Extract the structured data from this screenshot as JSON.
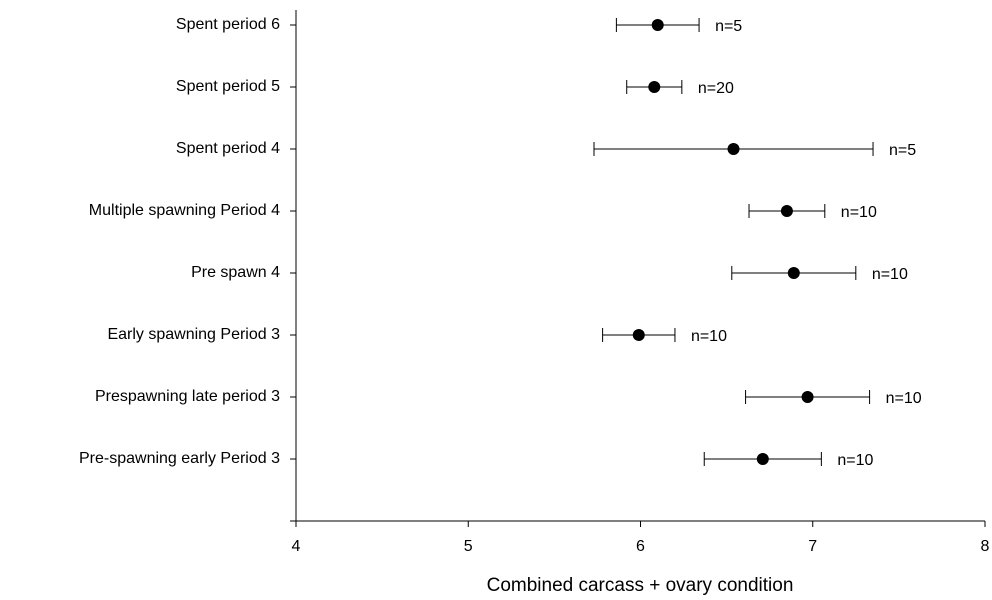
{
  "chart_data": {
    "type": "errorbar",
    "xlabel": "Combined carcass + ovary condition",
    "categories": [
      "Spent period 6",
      "Spent period 5",
      "Spent period 4",
      "Multiple spawning Period 4",
      "Pre spawn 4",
      "Early spawning Period 3",
      "Prespawning late period 3",
      "Pre-spawning early Period 3"
    ],
    "values": [
      6.1,
      6.08,
      6.54,
      6.85,
      6.89,
      5.99,
      6.97,
      6.71
    ],
    "errors": [
      0.24,
      0.16,
      0.81,
      0.22,
      0.36,
      0.21,
      0.36,
      0.34
    ],
    "annotations": [
      "n=5",
      "n=20",
      "n=5",
      "n=10",
      "n=10",
      "n=10",
      "n=10",
      "n=10"
    ],
    "color": "#000000",
    "xlim": [
      4,
      8
    ],
    "xticks": [
      4,
      5,
      6,
      7,
      8
    ]
  }
}
